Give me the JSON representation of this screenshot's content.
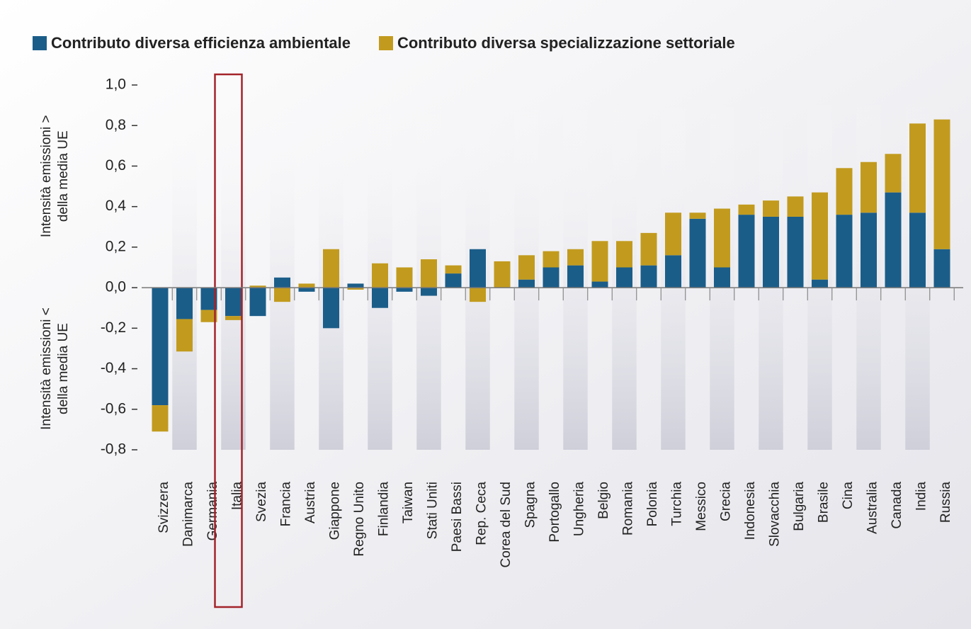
{
  "chart_data": {
    "type": "stacked_bar",
    "categories": [
      "Svizzera",
      "Danimarca",
      "Germania",
      "Italia",
      "Svezia",
      "Francia",
      "Austria",
      "Giappone",
      "Regno Unito",
      "Finlandia",
      "Taiwan",
      "Stati Uniti",
      "Paesi Bassi",
      "Rep. Ceca",
      "Corea del Sud",
      "Spagna",
      "Portogallo",
      "Ungheria",
      "Belgio",
      "Romania",
      "Polonia",
      "Turchia",
      "Messico",
      "Grecia",
      "Indonesia",
      "Slovacchia",
      "Bulgaria",
      "Brasile",
      "Cina",
      "Australia",
      "Canada",
      "India",
      "Russia"
    ],
    "series": [
      {
        "name": "Contributo diversa efficienza ambientale",
        "color": "#1b5d89",
        "values": [
          -0.58,
          -0.155,
          -0.11,
          -0.14,
          -0.14,
          0.05,
          -0.02,
          -0.2,
          0.02,
          -0.1,
          -0.02,
          -0.04,
          0.07,
          0.19,
          0,
          0.04,
          0.1,
          0.11,
          0.03,
          0.1,
          0.11,
          0.16,
          0.34,
          0.1,
          0.36,
          0.35,
          0.35,
          0.04,
          0.36,
          0.37,
          0.47,
          0.37,
          0.19
        ]
      },
      {
        "name": "Contributo diversa specializzazione settoriale",
        "color": "#c29b1e",
        "values": [
          -0.13,
          -0.16,
          -0.06,
          -0.02,
          0.01,
          -0.07,
          0.02,
          0.19,
          -0.01,
          0.12,
          0.1,
          0.14,
          0.04,
          -0.07,
          0.13,
          0.12,
          0.08,
          0.08,
          0.2,
          0.13,
          0.16,
          0.21,
          0.03,
          0.29,
          0.05,
          0.08,
          0.1,
          0.43,
          0.23,
          0.25,
          0.19,
          0.44,
          0.64
        ]
      }
    ],
    "ylabel_upper": [
      "Intensità emissioni >",
      "della media UE"
    ],
    "ylabel_lower": [
      "Intensità emissioni <",
      "della media UE"
    ],
    "ylim": [
      -0.8,
      1.0
    ],
    "yticks": [
      {
        "value": 1.0,
        "label": "1,0"
      },
      {
        "value": 0.8,
        "label": "0,8"
      },
      {
        "value": 0.6,
        "label": "0,6"
      },
      {
        "value": 0.4,
        "label": "0,4"
      },
      {
        "value": 0.2,
        "label": "0,2"
      },
      {
        "value": 0,
        "label": "0,0"
      },
      {
        "value": -0.2,
        "label": "-0,2"
      },
      {
        "value": -0.4,
        "label": "-0,4"
      },
      {
        "value": -0.6,
        "label": "-0,6"
      },
      {
        "value": -0.8,
        "label": "-0,8"
      }
    ],
    "highlight": "Italia",
    "highlight_color": "#a3242a"
  }
}
